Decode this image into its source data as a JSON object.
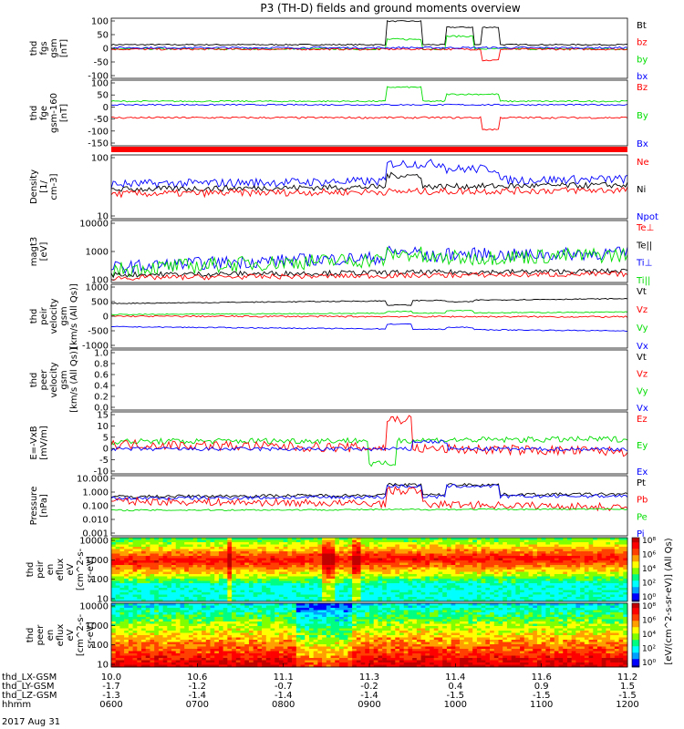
{
  "title": "P3 (TH-D) fields and ground moments overview",
  "date": "2017 Aug 31",
  "colors": {
    "black": "#000000",
    "red": "#ff0000",
    "green": "#00dd00",
    "blue": "#0000ff",
    "bar": "#ff0000"
  },
  "chart_data": [
    {
      "type": "line",
      "panel": "fgs",
      "ylabel": [
        "thd",
        "fgs",
        "gsm",
        "[nT]"
      ],
      "yticks": [
        "100",
        "50",
        "0",
        "-50",
        "-100"
      ],
      "ylim": [
        -100,
        100
      ],
      "legend": [
        {
          "label": "Bt",
          "color": "#000000"
        },
        {
          "label": "bz",
          "color": "#ff0000"
        },
        {
          "label": "by",
          "color": "#00dd00"
        },
        {
          "label": "bx",
          "color": "#0000ff"
        }
      ],
      "series": [
        {
          "color": "#000000",
          "base": 12,
          "noise": 2,
          "segments": [
            [
              10.64,
              10.72,
              90
            ],
            [
              10.78,
              10.84,
              70
            ],
            [
              10.86,
              10.9,
              70
            ]
          ]
        },
        {
          "color": "#00dd00",
          "base": -2,
          "noise": 3,
          "segments": [
            [
              10.64,
              10.72,
              30
            ],
            [
              10.78,
              10.84,
              40
            ]
          ]
        },
        {
          "color": "#ff0000",
          "base": -3,
          "noise": 3,
          "segments": [
            [
              10.86,
              10.9,
              -40
            ]
          ]
        },
        {
          "color": "#0000ff",
          "base": 2,
          "noise": 3,
          "segments": []
        }
      ]
    },
    {
      "type": "line",
      "panel": "fge",
      "ylabel": [
        "thd",
        "fge",
        "gsm-160",
        "[nT]"
      ],
      "yticks": [
        "100",
        "50",
        "0",
        "-50",
        "-100",
        "-150"
      ],
      "ylim": [
        -180,
        100
      ],
      "legend": [
        {
          "label": "Bz",
          "color": "#ff0000"
        },
        {
          "label": "By",
          "color": "#00dd00"
        },
        {
          "label": "Bx",
          "color": "#0000ff"
        }
      ],
      "series": [
        {
          "color": "#00dd00",
          "base": 10,
          "noise": 3,
          "segments": [
            [
              10.64,
              10.72,
              70
            ],
            [
              10.78,
              10.9,
              40
            ]
          ]
        },
        {
          "color": "#0000ff",
          "base": -5,
          "noise": 3,
          "segments": []
        },
        {
          "color": "#ff0000",
          "base": -60,
          "noise": 4,
          "segments": [
            [
              10.86,
              10.9,
              -110
            ]
          ]
        }
      ]
    },
    {
      "type": "bar",
      "panel": "bar",
      "note": "red status bar spanning the whole time range"
    },
    {
      "type": "line",
      "panel": "density",
      "scale": "log",
      "ylabel": [
        "Density",
        "[1/",
        "cm-3]"
      ],
      "yticks": [
        "100",
        "10"
      ],
      "ylim": [
        2,
        300
      ],
      "legend": [
        {
          "label": "Ne",
          "color": "#ff0000"
        },
        {
          "label": "Ni",
          "color": "#000000"
        },
        {
          "label": "Npot",
          "color": "#0000ff"
        }
      ],
      "series": [
        {
          "color": "#0000ff",
          "base": 30,
          "trend": 15,
          "noise": 0.15,
          "segments": [
            [
              10.64,
              10.78,
              150
            ],
            [
              10.78,
              10.9,
              100
            ]
          ]
        },
        {
          "color": "#000000",
          "base": 20,
          "trend": 8,
          "noise": 0.1,
          "segments": [
            [
              10.64,
              10.72,
              60
            ]
          ]
        },
        {
          "color": "#ff0000",
          "base": 14,
          "trend": 5,
          "noise": 0.12,
          "segments": []
        }
      ]
    },
    {
      "type": "line",
      "panel": "magt3",
      "scale": "log",
      "ylabel": [
        "magt3",
        "[eV]"
      ],
      "yticks": [
        "10000",
        "1000",
        "100"
      ],
      "ylim": [
        40,
        10000
      ],
      "legend": [
        {
          "label": "Te⊥",
          "color": "#ff0000"
        },
        {
          "label": "Te||",
          "color": "#000000"
        },
        {
          "label": "Ti⊥",
          "color": "#0000ff"
        },
        {
          "label": "Ti||",
          "color": "#00dd00"
        }
      ],
      "series": [
        {
          "color": "#0000ff",
          "base": 150,
          "trend": 400,
          "noise": 0.25,
          "segments": [
            [
              10.64,
              10.72,
              600
            ],
            [
              10.78,
              10.9,
              500
            ]
          ]
        },
        {
          "color": "#00dd00",
          "base": 120,
          "trend": 350,
          "noise": 0.3,
          "segments": [
            [
              10.64,
              10.72,
              500
            ]
          ]
        },
        {
          "color": "#000000",
          "base": 80,
          "trend": 30,
          "noise": 0.1,
          "segments": []
        },
        {
          "color": "#ff0000",
          "base": 60,
          "trend": 25,
          "noise": 0.1,
          "segments": []
        }
      ]
    },
    {
      "type": "line",
      "panel": "peirvel",
      "ylabel": [
        "thd",
        "peir",
        "velocity",
        "gsm",
        "[km/s (All Qs)]"
      ],
      "yticks": [
        "1000",
        "500",
        "0",
        "-500",
        "-1000"
      ],
      "ylim": [
        -1000,
        1000
      ],
      "legend": [
        {
          "label": "Vt",
          "color": "#000000"
        },
        {
          "label": "Vz",
          "color": "#ff0000"
        },
        {
          "label": "Vy",
          "color": "#00dd00"
        },
        {
          "label": "Vx",
          "color": "#0000ff"
        }
      ],
      "series": [
        {
          "color": "#000000",
          "base": 400,
          "trend": 150,
          "noise": 15,
          "segments": [
            [
              10.64,
              10.7,
              350
            ],
            [
              10.78,
              10.84,
              450
            ]
          ]
        },
        {
          "color": "#00dd00",
          "base": 50,
          "trend": 80,
          "noise": 15,
          "segments": [
            [
              10.64,
              10.7,
              150
            ],
            [
              10.78,
              10.84,
              180
            ]
          ]
        },
        {
          "color": "#ff0000",
          "base": 0,
          "trend": -20,
          "noise": 25,
          "segments": []
        },
        {
          "color": "#0000ff",
          "base": -330,
          "trend": -130,
          "noise": 15,
          "segments": [
            [
              10.64,
              10.7,
              -250
            ],
            [
              10.78,
              10.84,
              -350
            ]
          ]
        }
      ]
    },
    {
      "type": "line",
      "panel": "peervel",
      "ylabel": [
        "thd",
        "peer",
        "velocity",
        "gsm",
        "[km/s (All Qs)]"
      ],
      "yticks": [
        "1.0",
        "0.8",
        "0.6",
        "0.4",
        "0.2",
        "0.0"
      ],
      "ylim": [
        0,
        1
      ],
      "legend": [
        {
          "label": "Vt",
          "color": "#000000"
        },
        {
          "label": "Vz",
          "color": "#ff0000"
        },
        {
          "label": "Vy",
          "color": "#00dd00"
        },
        {
          "label": "Vx",
          "color": "#0000ff"
        }
      ],
      "series": []
    },
    {
      "type": "line",
      "panel": "efield",
      "ylabel": [
        "E=-VxB",
        "[mV/m]"
      ],
      "yticks": [
        "15",
        "10",
        "5",
        "0",
        "-5",
        "-10"
      ],
      "ylim": [
        -10,
        15
      ],
      "legend": [
        {
          "label": "Ez",
          "color": "#ff0000"
        },
        {
          "label": "Ey",
          "color": "#00dd00"
        },
        {
          "label": "Ex",
          "color": "#0000ff"
        }
      ],
      "series": [
        {
          "color": "#00dd00",
          "base": 3,
          "trend": 1,
          "noise": 1.2,
          "segments": [
            [
              10.6,
              10.66,
              -6
            ]
          ]
        },
        {
          "color": "#ff0000",
          "base": 2,
          "trend": -3,
          "noise": 2,
          "segments": [
            [
              10.64,
              10.7,
              12
            ]
          ]
        },
        {
          "color": "#0000ff",
          "base": 0,
          "trend": 0,
          "noise": 0.8,
          "segments": [
            [
              10.7,
              10.78,
              3
            ]
          ]
        }
      ]
    },
    {
      "type": "line",
      "panel": "pressure",
      "scale": "log",
      "ylabel": [
        "Pressure",
        "[nPa]"
      ],
      "yticks": [
        "10.000",
        "1.000",
        "0.100",
        "0.010",
        "0.001"
      ],
      "ylim": [
        0.001,
        10
      ],
      "legend": [
        {
          "label": "Pt",
          "color": "#000000"
        },
        {
          "label": "Pb",
          "color": "#ff0000"
        },
        {
          "label": "Pe",
          "color": "#00dd00"
        },
        {
          "label": "Pi",
          "color": "#0000ff"
        }
      ],
      "series": [
        {
          "color": "#000000",
          "base": 0.4,
          "trend": 0.2,
          "noise": 0.1,
          "segments": [
            [
              10.64,
              10.72,
              2.5
            ],
            [
              10.78,
              10.9,
              2.5
            ]
          ]
        },
        {
          "color": "#0000ff",
          "base": 0.3,
          "trend": 0.15,
          "noise": 0.12,
          "segments": [
            [
              10.64,
              10.72,
              2
            ],
            [
              10.78,
              10.9,
              2
            ]
          ]
        },
        {
          "color": "#ff0000",
          "base": 0.2,
          "trend": -0.12,
          "noise": 0.25,
          "segments": [
            [
              10.64,
              10.72,
              1.0
            ]
          ]
        },
        {
          "color": "#00dd00",
          "base": 0.05,
          "trend": 0.01,
          "noise": 0.05,
          "segments": []
        }
      ]
    },
    {
      "type": "heatmap",
      "panel": "peiren",
      "scale": "log",
      "ylabel": [
        "thd",
        "peir",
        "en",
        "eflux",
        "eV",
        "[cm^2-s-",
        "sr-eV]"
      ],
      "yticks": [
        "10000",
        "1000",
        "100",
        "10"
      ],
      "ylim": [
        5,
        25000
      ],
      "colorbar": [
        "10⁸",
        "10⁶",
        "10⁴",
        "10²",
        "10⁰"
      ]
    },
    {
      "type": "heatmap",
      "panel": "peeren",
      "scale": "log",
      "ylabel": [
        "thd",
        "peer",
        "en",
        "eflux",
        "eV",
        "[cm^2-s-",
        "sr-eV]"
      ],
      "yticks": [
        "10000",
        "1000",
        "100",
        "10"
      ],
      "ylim": [
        5,
        25000
      ],
      "colorbar": [
        "10⁸",
        "10⁶",
        "10⁴",
        "10²",
        "10⁰"
      ]
    }
  ],
  "colorbar_label": "[eV/(cm^2-s-sr-eV)] (All Qs)",
  "xaxis": {
    "rows": [
      {
        "label": "thd_LX-GSM",
        "values": [
          "10.0",
          "10.6",
          "11.1",
          "11.3",
          "11.4",
          "11.6",
          "11.2"
        ]
      },
      {
        "label": "thd_LY-GSM",
        "values": [
          "-1.7",
          "-1.2",
          "-0.7",
          "-0.2",
          "0.4",
          "0.9",
          "1.5"
        ]
      },
      {
        "label": "thd_LZ-GSM",
        "values": [
          "-1.3",
          "-1.4",
          "-1.4",
          "-1.4",
          "-1.5",
          "-1.5",
          "-1.5"
        ]
      },
      {
        "label": "hhmm",
        "values": [
          "0600",
          "0700",
          "0800",
          "0900",
          "1000",
          "1100",
          "1200"
        ]
      }
    ]
  }
}
